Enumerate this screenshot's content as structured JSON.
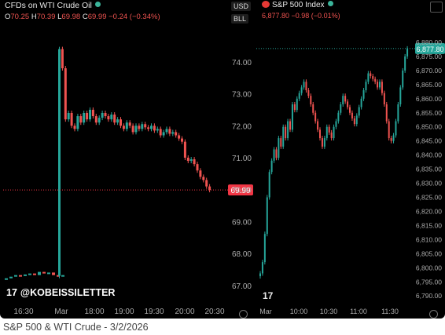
{
  "left_panel": {
    "title": "CFDs on WTI Crude Oil",
    "ohlc": {
      "o_label": "O",
      "o": "70.25",
      "h_label": "H",
      "h": "70.39",
      "l_label": "L",
      "l": "69.98",
      "c_label": "C",
      "c": "69.99",
      "change": "−0.24 (−0.34%)"
    }
  },
  "right_panel": {
    "currency_pill": "USD",
    "unit_pill": "BLL",
    "title": "S&P 500 Index",
    "price_line": "6,877.80  −0.98 (−0.01%)"
  },
  "watermark": "@KOBEISSILETTER",
  "caption": "S&P 500 & WTI Crude - 3/2/2026",
  "colors": {
    "up": "#26a69a",
    "down": "#ef5350",
    "last_price_label": "#f23645",
    "sp_last_label": "#26a69a"
  },
  "chart_data": [
    {
      "type": "line",
      "title": "CFDs on WTI Crude Oil",
      "x_ticks": [
        "16:30",
        "Mar",
        "18:00",
        "19:00",
        "19:30",
        "20:00",
        "20:30"
      ],
      "y_ticks": [
        "74.00",
        "73.00",
        "72.00",
        "71.00",
        "70.00",
        "69.00",
        "68.00",
        "67.00"
      ],
      "ylim": [
        66.8,
        75.2
      ],
      "last_price": 69.99,
      "last_price_label": "69.99",
      "series": [
        {
          "values": [
            67.2,
            67.25,
            67.3,
            67.28,
            67.32,
            67.35,
            67.3,
            67.4,
            67.35,
            67.38,
            67.3,
            67.25,
            67.3
          ]
        },
        {
          "values": [
            67.3,
            74.4,
            73.8,
            72.2,
            72.4,
            72.0,
            71.9,
            72.3,
            72.1,
            72.4,
            72.2,
            72.5,
            72.3,
            72.1,
            72.25,
            72.4,
            72.3,
            72.2,
            72.35,
            72.1,
            72.2,
            72.0,
            71.9,
            72.1,
            72.0,
            71.8,
            72.0,
            71.9,
            72.05,
            71.95,
            71.9,
            72.0,
            71.85,
            71.9,
            71.7,
            71.8,
            71.9,
            71.75,
            71.8,
            71.7,
            71.6,
            71.5,
            71.0,
            70.9,
            70.95,
            70.8,
            70.6,
            70.4,
            70.3,
            70.1,
            69.99
          ]
        }
      ]
    },
    {
      "type": "line",
      "title": "S&P 500 Index",
      "x_ticks": [
        "Mar",
        "10:00",
        "10:30",
        "11:00",
        "11:30"
      ],
      "y_ticks": [
        "6,880.00",
        "6,875.00",
        "6,870.00",
        "6,865.00",
        "6,860.00",
        "6,855.00",
        "6,850.00",
        "6,845.00",
        "6,840.00",
        "6,835.00",
        "6,830.00",
        "6,825.00",
        "6,820.00",
        "6,815.00",
        "6,810.00",
        "6,805.00",
        "6,800.00",
        "6,795.00",
        "6,790.00"
      ],
      "ylim": [
        6787,
        6885
      ],
      "last_price": 6877.8,
      "last_price_label": "6,877.80",
      "values": [
        6798,
        6802,
        6812,
        6825,
        6834,
        6838,
        6842,
        6839,
        6846,
        6843,
        6850,
        6846,
        6852,
        6849,
        6858,
        6856,
        6860,
        6862,
        6864,
        6866,
        6863,
        6861,
        6858,
        6855,
        6852,
        6849,
        6846,
        6843,
        6846,
        6850,
        6848,
        6846,
        6850,
        6852,
        6855,
        6858,
        6861,
        6859,
        6857,
        6855,
        6853,
        6851,
        6854,
        6857,
        6860,
        6863,
        6866,
        6869,
        6868,
        6867,
        6866,
        6864,
        6866,
        6862,
        6858,
        6852,
        6846,
        6845,
        6847,
        6852,
        6858,
        6864,
        6870,
        6875,
        6877.8
      ]
    }
  ]
}
